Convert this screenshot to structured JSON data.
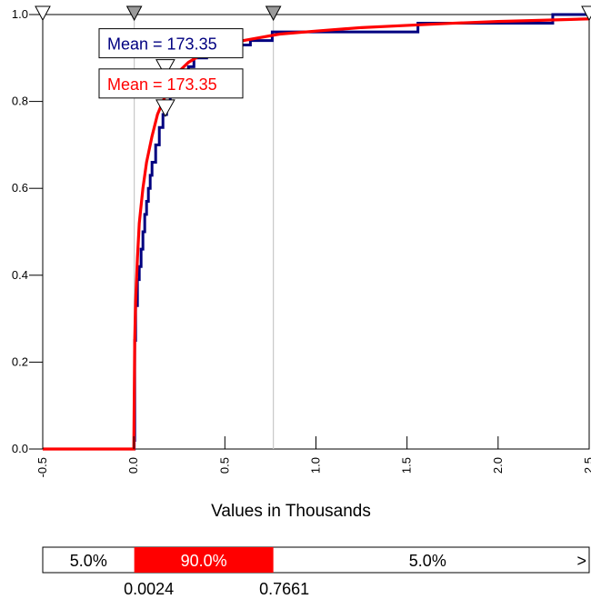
{
  "chart_data": {
    "type": "line",
    "title": "",
    "xlabel": "Values in Thousands",
    "ylabel": "",
    "xlim": [
      -0.5,
      2.5
    ],
    "ylim": [
      0.0,
      1.0
    ],
    "x_ticks": [
      "-0.5",
      "0.0",
      "0.5",
      "1.0",
      "1.5",
      "2.0",
      "2.5"
    ],
    "y_ticks": [
      "0.0",
      "0.2",
      "0.4",
      "0.6",
      "0.8",
      "1.0"
    ],
    "series": [
      {
        "color": "#000080",
        "step": true,
        "x": [
          -0.5,
          0.0024,
          0.005,
          0.01,
          0.02,
          0.03,
          0.04,
          0.05,
          0.06,
          0.07,
          0.08,
          0.09,
          0.1,
          0.12,
          0.14,
          0.16,
          0.18,
          0.2,
          0.23,
          0.26,
          0.3,
          0.33,
          0.4,
          0.45,
          0.53,
          0.64,
          0.76,
          1.2,
          1.56,
          1.9,
          2.3,
          2.5
        ],
        "y": [
          0.0,
          0.02,
          0.25,
          0.33,
          0.39,
          0.42,
          0.46,
          0.5,
          0.54,
          0.57,
          0.6,
          0.63,
          0.66,
          0.7,
          0.74,
          0.77,
          0.8,
          0.82,
          0.84,
          0.86,
          0.88,
          0.9,
          0.91,
          0.92,
          0.93,
          0.94,
          0.96,
          0.96,
          0.98,
          0.98,
          1.0,
          1.0
        ]
      },
      {
        "color": "#ff0000",
        "step": false,
        "x": [
          -0.5,
          0.0,
          0.005,
          0.01,
          0.02,
          0.03,
          0.05,
          0.07,
          0.1,
          0.13,
          0.16,
          0.2,
          0.25,
          0.3,
          0.4,
          0.5,
          0.6,
          0.8,
          1.0,
          1.25,
          1.5,
          1.75,
          2.0,
          2.25,
          2.5
        ],
        "y": [
          0.0,
          0.0,
          0.25,
          0.34,
          0.44,
          0.52,
          0.6,
          0.66,
          0.72,
          0.77,
          0.8,
          0.84,
          0.87,
          0.89,
          0.915,
          0.93,
          0.94,
          0.955,
          0.962,
          0.97,
          0.975,
          0.98,
          0.984,
          0.987,
          0.99
        ]
      }
    ],
    "markers": {
      "delimiters": [
        0.0024,
        0.7661
      ],
      "top_triangles": [
        -0.5,
        0.0024,
        0.7661,
        2.5
      ]
    },
    "annotations": [
      {
        "label": "Mean = 173.35",
        "color": "#000080",
        "x": 0.17335,
        "y": 0.8
      },
      {
        "label": "Mean = 173.35",
        "color": "#ff0000",
        "x": 0.17335,
        "y": 0.72
      }
    ],
    "probability_bar": {
      "left": "5.0%",
      "middle": "90.0%",
      "right": "5.0%",
      "overflow": ">",
      "middle_color": "#ff0000",
      "low_value": "0.0024",
      "high_value": "0.7661"
    },
    "grid": false,
    "legend": "none"
  }
}
